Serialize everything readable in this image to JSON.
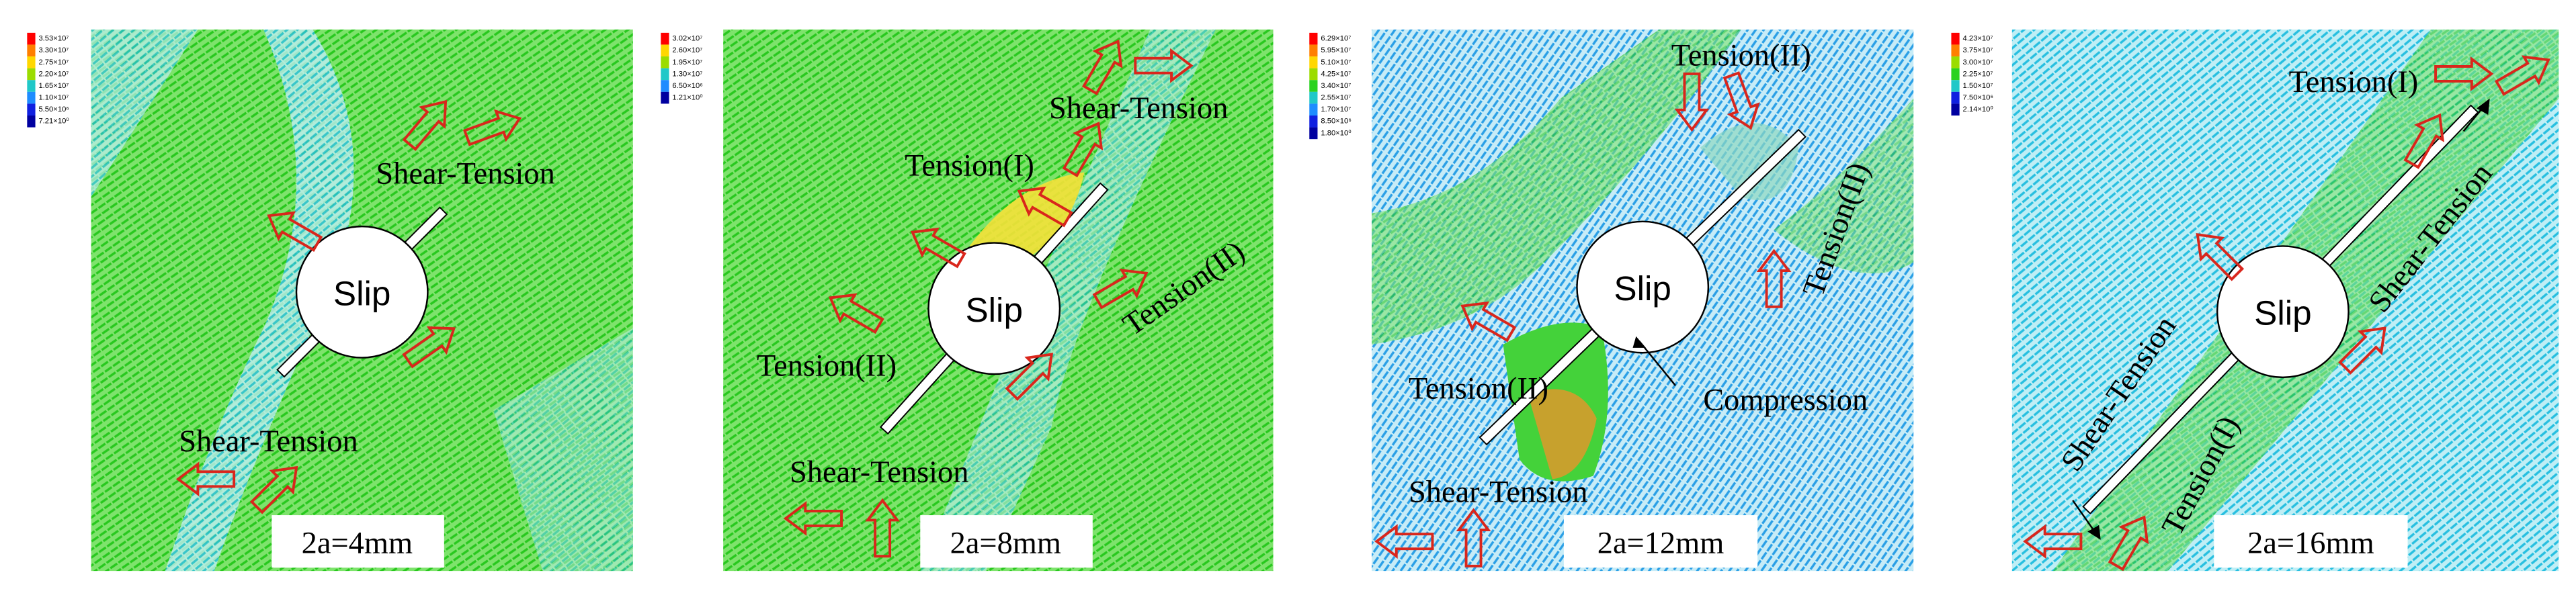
{
  "panels": [
    {
      "legend": [
        "3.53×10⁷",
        "3.30×10⁷",
        "2.75×10⁷",
        "2.20×10⁷",
        "1.65×10⁷",
        "1.10×10⁷",
        "5.50×10⁶",
        "7.21×10⁰"
      ],
      "slip": "Slip",
      "labels": [
        "Shear-Tension",
        "Shear-Tension"
      ],
      "caption": "2a=4mm"
    },
    {
      "legend": [
        "3.02×10⁷",
        "2.60×10⁷",
        "1.95×10⁷",
        "1.30×10⁷",
        "6.50×10⁶",
        "1.21×10⁰"
      ],
      "slip": "Slip",
      "labels": [
        "Shear-Tension",
        "Tension(I)",
        "Tension(II)",
        "Tension(II)",
        "Shear-Tension"
      ],
      "caption": "2a=8mm"
    },
    {
      "legend": [
        "6.29×10⁷",
        "5.95×10⁷",
        "5.10×10⁷",
        "4.25×10⁷",
        "3.40×10⁷",
        "2.55×10⁷",
        "1.70×10⁷",
        "8.50×10⁶",
        "1.80×10⁰"
      ],
      "slip": "Slip",
      "labels": [
        "Tension(II)",
        "Tension(II)",
        "Tension(II)",
        "Compression",
        "Shear-Tension"
      ],
      "caption": "2a=12mm"
    },
    {
      "legend": [
        "4.23×10⁷",
        "3.75×10⁷",
        "3.00×10⁷",
        "2.25×10⁷",
        "1.50×10⁷",
        "7.50×10⁶",
        "2.14×10⁰"
      ],
      "slip": "Slip",
      "labels": [
        "Tension(I)",
        "Shear-Tension",
        "Shear-Tension",
        "Tension(I)"
      ],
      "caption": "2a=16mm"
    }
  ]
}
